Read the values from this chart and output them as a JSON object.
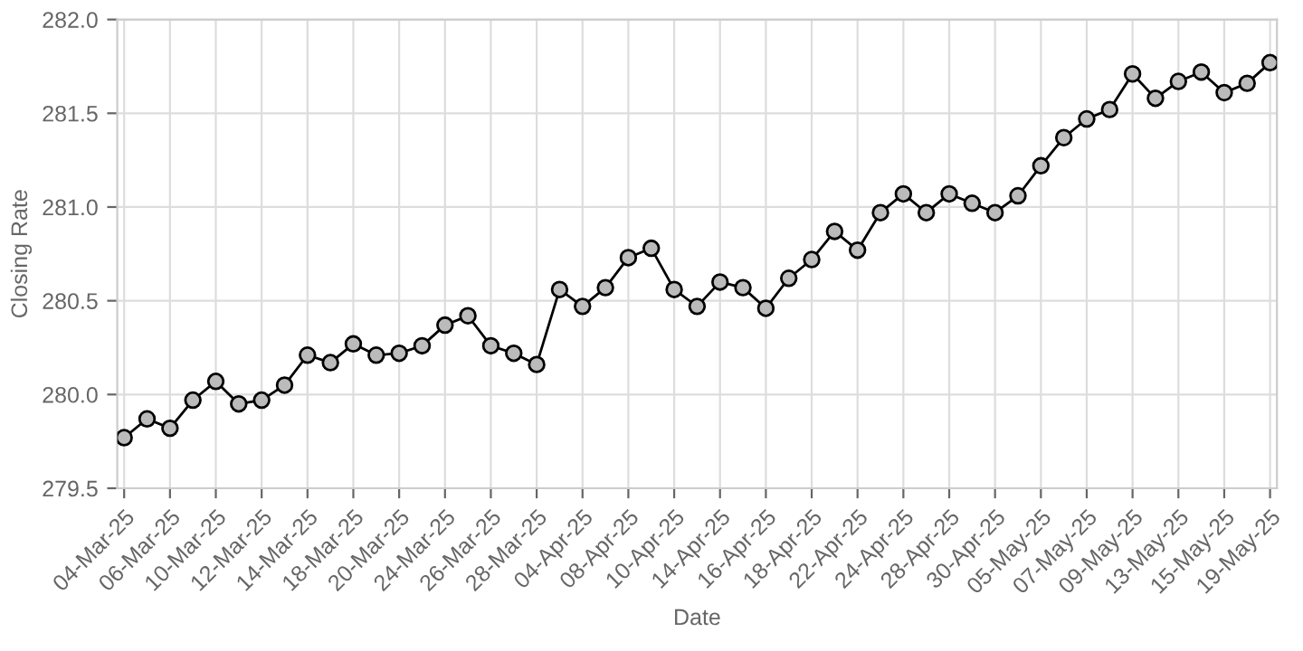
{
  "chart_data": {
    "type": "line",
    "xlabel": "Date",
    "ylabel": "Closing Rate",
    "categories": [
      "04-Mar-25",
      null,
      "06-Mar-25",
      null,
      "10-Mar-25",
      null,
      "12-Mar-25",
      null,
      "14-Mar-25",
      null,
      "18-Mar-25",
      null,
      "20-Mar-25",
      null,
      "24-Mar-25",
      null,
      "26-Mar-25",
      null,
      "28-Mar-25",
      null,
      "04-Apr-25",
      null,
      "08-Apr-25",
      null,
      "10-Apr-25",
      null,
      "14-Apr-25",
      null,
      "16-Apr-25",
      null,
      "18-Apr-25",
      null,
      "22-Apr-25",
      null,
      "24-Apr-25",
      null,
      "28-Apr-25",
      null,
      "30-Apr-25",
      null,
      "05-May-25",
      null,
      "07-May-25",
      null,
      "09-May-25",
      null,
      "13-May-25",
      null,
      "15-May-25",
      null,
      "19-May-25"
    ],
    "series": [
      {
        "color": "#000000",
        "values": [
          279.77,
          279.87,
          279.82,
          279.97,
          280.07,
          279.95,
          279.97,
          280.05,
          280.21,
          280.17,
          280.27,
          280.21,
          280.22,
          280.26,
          280.37,
          280.42,
          280.26,
          280.22,
          280.16,
          280.56,
          280.47,
          280.57,
          280.73,
          280.78,
          280.56,
          280.47,
          280.6,
          280.57,
          280.46,
          280.62,
          280.72,
          280.87,
          280.77,
          280.97,
          281.07,
          280.97,
          281.07,
          281.02,
          280.97,
          281.06,
          281.22,
          281.37,
          281.47,
          281.52,
          281.71,
          281.58,
          281.67,
          281.72,
          281.61,
          281.66,
          281.77
        ]
      }
    ],
    "ylim": [
      279.5,
      282.0
    ],
    "yticks": [
      {
        "value": 279.5,
        "label": "279.5"
      },
      {
        "value": 280.0,
        "label": "280.0"
      },
      {
        "value": 280.5,
        "label": "280.5"
      },
      {
        "value": 281.0,
        "label": "281.0"
      },
      {
        "value": 281.5,
        "label": "281.5"
      },
      {
        "value": 282.0,
        "label": "282.0"
      }
    ],
    "grid": true,
    "marker": "circle",
    "line_style": "solid"
  }
}
